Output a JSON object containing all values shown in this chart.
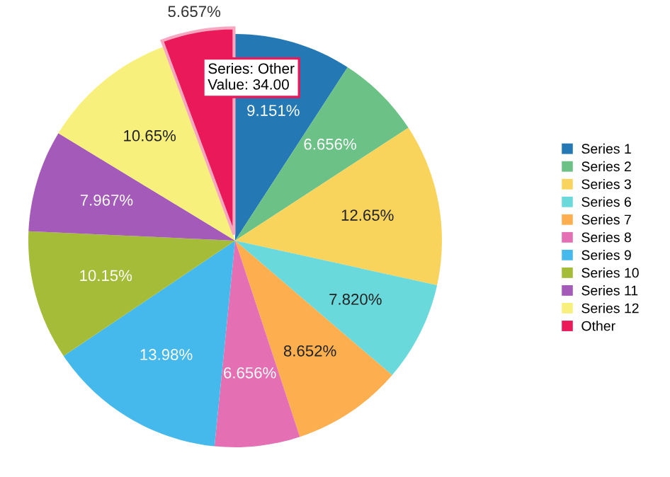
{
  "chart_data": {
    "type": "pie",
    "categories": [
      "Series 1",
      "Series 2",
      "Series 3",
      "Series 6",
      "Series 7",
      "Series 8",
      "Series 9",
      "Series 10",
      "Series 11",
      "Series 12",
      "Other"
    ],
    "values": [
      9.151,
      6.656,
      12.65,
      7.82,
      8.652,
      6.656,
      13.98,
      10.15,
      7.967,
      10.65,
      5.657
    ],
    "value_labels": [
      "9.151%",
      "6.656%",
      "12.65%",
      "7.820%",
      "8.652%",
      "6.656%",
      "13.98%",
      "10.15%",
      "7.967%",
      "10.65%",
      "5.657%"
    ],
    "colors": [
      "#2479b4",
      "#6cc286",
      "#f9d45c",
      "#6ad9db",
      "#fdaf4f",
      "#e46fb3",
      "#45b8ec",
      "#a4bc38",
      "#a45ab9",
      "#f8f07c",
      "#e9195a"
    ],
    "legend": "right",
    "annotations": [
      {
        "text": "Series: Other\nValue: 34.00",
        "x": "Other"
      }
    ]
  }
}
